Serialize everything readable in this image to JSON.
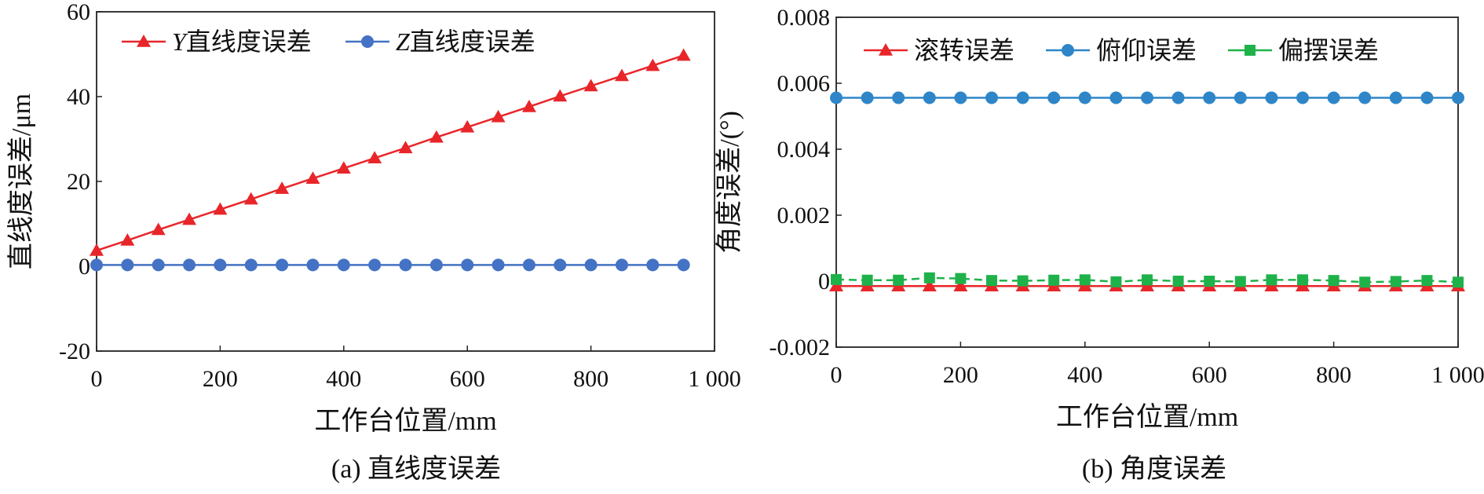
{
  "chart_data": [
    {
      "type": "line",
      "caption": "(a) 直线度误差",
      "xlabel": "工作台位置/mm",
      "ylabel": "直线度误差/μm",
      "xlim": [
        0,
        1000
      ],
      "ylim": [
        -20,
        60
      ],
      "xticks": [
        0,
        200,
        400,
        600,
        800,
        1000
      ],
      "xtick_labels": [
        "0",
        "200",
        "400",
        "600",
        "800",
        "1 000"
      ],
      "yticks": [
        -20,
        0,
        20,
        40,
        60
      ],
      "ytick_labels": [
        "-20",
        "0",
        "20",
        "40",
        "60"
      ],
      "legend_position": "top-left",
      "x": [
        0,
        50,
        100,
        150,
        200,
        250,
        300,
        350,
        400,
        450,
        500,
        550,
        600,
        650,
        700,
        750,
        800,
        850,
        900,
        950
      ],
      "series": [
        {
          "name": "Y直线度误差",
          "name_italic": "Y",
          "name_rest": "直线度误差",
          "color": "#e8262a",
          "marker": "triangle",
          "values": [
            3.7,
            6.1,
            8.6,
            11.0,
            13.4,
            15.8,
            18.3,
            20.7,
            23.1,
            25.5,
            27.9,
            30.4,
            32.8,
            35.2,
            37.6,
            40.1,
            42.5,
            44.9,
            47.3,
            49.7
          ]
        },
        {
          "name": "Z直线度误差",
          "name_italic": "Z",
          "name_rest": "直线度误差",
          "color": "#4472c4",
          "marker": "circle",
          "values": [
            0.3,
            0.3,
            0.3,
            0.3,
            0.3,
            0.3,
            0.3,
            0.3,
            0.3,
            0.3,
            0.3,
            0.3,
            0.3,
            0.3,
            0.3,
            0.3,
            0.3,
            0.3,
            0.3,
            0.3
          ]
        }
      ]
    },
    {
      "type": "line",
      "caption": "(b) 角度误差",
      "xlabel": "工作台位置/mm",
      "ylabel": "角度误差/(°)",
      "xlim": [
        0,
        1000
      ],
      "ylim": [
        -0.002,
        0.008
      ],
      "xticks": [
        0,
        200,
        400,
        600,
        800,
        1000
      ],
      "xtick_labels": [
        "0",
        "200",
        "400",
        "600",
        "800",
        "1 000"
      ],
      "yticks": [
        -0.002,
        0,
        0.002,
        0.004,
        0.006,
        0.008
      ],
      "ytick_labels": [
        "-0.002",
        "0",
        "0.002",
        "0.004",
        "0.006",
        "0.008"
      ],
      "legend_position": "top",
      "x": [
        0,
        50,
        100,
        150,
        200,
        250,
        300,
        350,
        400,
        450,
        500,
        550,
        600,
        650,
        700,
        750,
        800,
        850,
        900,
        950,
        1000
      ],
      "series": [
        {
          "name": "滚转误差",
          "color": "#e8262a",
          "marker": "triangle",
          "values": [
            -0.00015,
            -0.00015,
            -0.00015,
            -0.00015,
            -0.00015,
            -0.00015,
            -0.00015,
            -0.00015,
            -0.00015,
            -0.00015,
            -0.00015,
            -0.00015,
            -0.00015,
            -0.00015,
            -0.00015,
            -0.00015,
            -0.00015,
            -0.00015,
            -0.00015,
            -0.00015,
            -0.00015
          ]
        },
        {
          "name": "俯仰误差",
          "color": "#2e86c8",
          "marker": "circle",
          "values": [
            0.00556,
            0.00556,
            0.00556,
            0.00556,
            0.00556,
            0.00556,
            0.00556,
            0.00556,
            0.00556,
            0.00556,
            0.00556,
            0.00556,
            0.00556,
            0.00556,
            0.00556,
            0.00556,
            0.00556,
            0.00556,
            0.00556,
            0.00556,
            0.00556
          ]
        },
        {
          "name": "偏摆误差",
          "color": "#1fb24a",
          "marker": "square",
          "values": [
            5e-05,
            3e-05,
            3e-05,
            0.0001,
            8e-05,
            2e-05,
            1e-05,
            3e-05,
            4e-05,
            -2e-05,
            4e-05,
            0.0,
            0.0,
            -1e-05,
            4e-05,
            4e-05,
            2e-05,
            -3e-05,
            -1e-05,
            2e-05,
            -3e-05
          ]
        }
      ]
    }
  ]
}
